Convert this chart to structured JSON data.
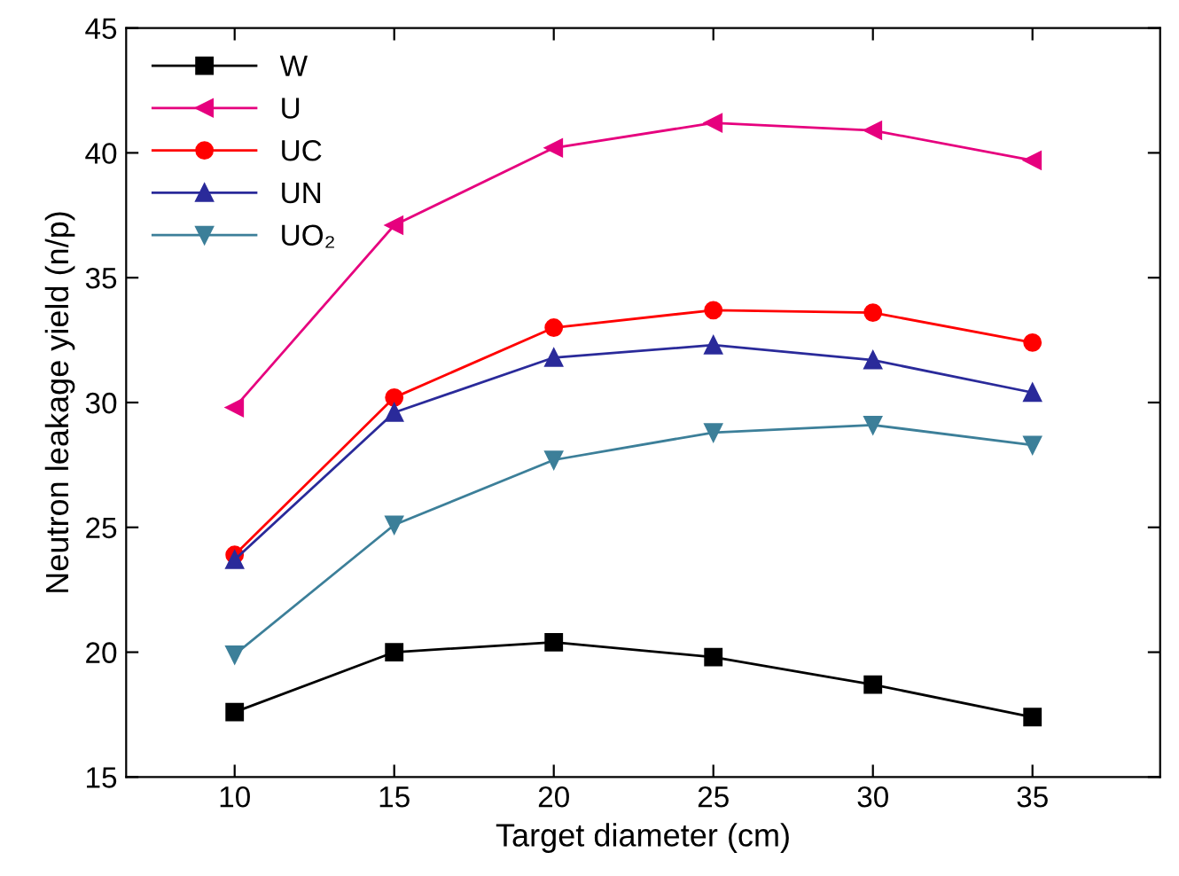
{
  "chart_data": {
    "type": "line",
    "xlabel": "Target diameter (cm)",
    "ylabel": "Neutron leakage yield (n/p)",
    "x": [
      10,
      15,
      20,
      25,
      30,
      35
    ],
    "series": [
      {
        "name": "W",
        "color": "#000000",
        "marker": "square",
        "values": [
          17.6,
          20.0,
          20.4,
          19.8,
          18.7,
          17.4
        ]
      },
      {
        "name": "U",
        "color": "#e6007e",
        "marker": "triangle-left",
        "values": [
          29.8,
          37.1,
          40.2,
          41.2,
          40.9,
          39.7
        ]
      },
      {
        "name": "UC",
        "color": "#ff0000",
        "marker": "circle",
        "values": [
          23.9,
          30.2,
          33.0,
          33.7,
          33.6,
          32.4
        ]
      },
      {
        "name": "UN",
        "color": "#2a2a9a",
        "marker": "triangle",
        "values": [
          23.7,
          29.6,
          31.8,
          32.3,
          31.7,
          30.4
        ]
      },
      {
        "name": "UO₂",
        "color": "#3c7f99",
        "marker": "triangle-down",
        "values": [
          19.9,
          25.1,
          27.7,
          28.8,
          29.1,
          28.3
        ]
      }
    ],
    "xlim": [
      6.6,
      39
    ],
    "xticks": [
      10,
      15,
      20,
      25,
      30,
      35
    ],
    "ylim": [
      15,
      45
    ],
    "yticks": [
      15,
      20,
      25,
      30,
      35,
      40,
      45
    ],
    "grid": false,
    "legend": "top left",
    "line_style": "solid"
  }
}
